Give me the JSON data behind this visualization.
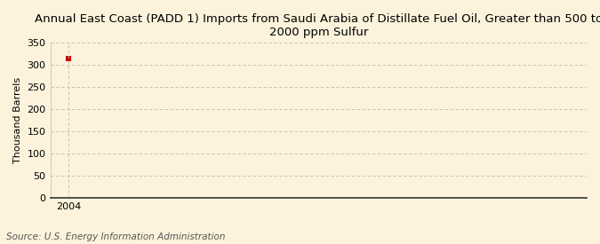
{
  "title": "Annual East Coast (PADD 1) Imports from Saudi Arabia of Distillate Fuel Oil, Greater than 500 to\n2000 ppm Sulfur",
  "ylabel": "Thousand Barrels",
  "source": "Source: U.S. Energy Information Administration",
  "background_color": "#fdf3dc",
  "plot_bg_color": "#fdf3dc",
  "data_x": [
    2004
  ],
  "data_y": [
    314
  ],
  "marker_color": "#cc0000",
  "xlim": [
    2003.3,
    2024
  ],
  "ylim": [
    0,
    350
  ],
  "yticks": [
    0,
    50,
    100,
    150,
    200,
    250,
    300,
    350
  ],
  "xticks": [
    2004
  ],
  "grid_color": "#bbbbaa",
  "title_fontsize": 9.5,
  "label_fontsize": 8,
  "tick_fontsize": 8,
  "source_fontsize": 7.5
}
